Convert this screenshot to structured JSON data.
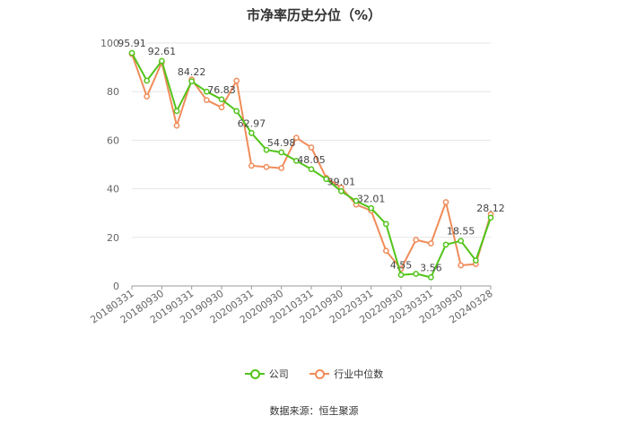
{
  "chart_data": {
    "type": "line",
    "title": "市净率历史分位（%）",
    "ylim": [
      0,
      100
    ],
    "yticks": [
      0,
      20,
      40,
      60,
      80,
      100
    ],
    "grid": true,
    "legend_position": "bottom",
    "x_tick_labels": [
      "20180331",
      "20180930",
      "20190331",
      "20190930",
      "20200331",
      "20200930",
      "20210331",
      "20210930",
      "20220331",
      "20220930",
      "20230331",
      "20230930",
      "20240328"
    ],
    "x_count": 25,
    "series": [
      {
        "name": "公司",
        "color": "#52c41a",
        "values": [
          95.91,
          84.5,
          92.61,
          72.0,
          84.22,
          80.0,
          76.83,
          72.0,
          62.97,
          56.0,
          54.98,
          51.5,
          48.05,
          44.0,
          39.01,
          35.0,
          32.01,
          25.5,
          4.55,
          5.0,
          3.56,
          17.0,
          18.55,
          10.5,
          28.12
        ],
        "labels": {
          "0": "95.91",
          "2": "92.61",
          "4": "84.22",
          "6": "76.83",
          "8": "62.97",
          "10": "54.98",
          "12": "48.05",
          "14": "39.01",
          "16": "32.01",
          "18": "4.55",
          "20": "3.56",
          "22": "18.55",
          "24": "28.12"
        }
      },
      {
        "name": "行业中位数",
        "color": "#f08c5a",
        "values": [
          95.5,
          78.0,
          92.0,
          66.0,
          85.0,
          76.5,
          73.5,
          84.5,
          49.5,
          49.0,
          48.5,
          61.0,
          57.0,
          44.5,
          40.5,
          33.5,
          31.0,
          14.5,
          7.0,
          19.0,
          17.5,
          34.5,
          8.5,
          9.0,
          29.5
        ]
      }
    ]
  },
  "legend": {
    "items": [
      {
        "label": "公司",
        "color": "#52c41a"
      },
      {
        "label": "行业中位数",
        "color": "#f08c5a"
      }
    ]
  },
  "footer": {
    "source": "数据来源：恒生聚源"
  }
}
